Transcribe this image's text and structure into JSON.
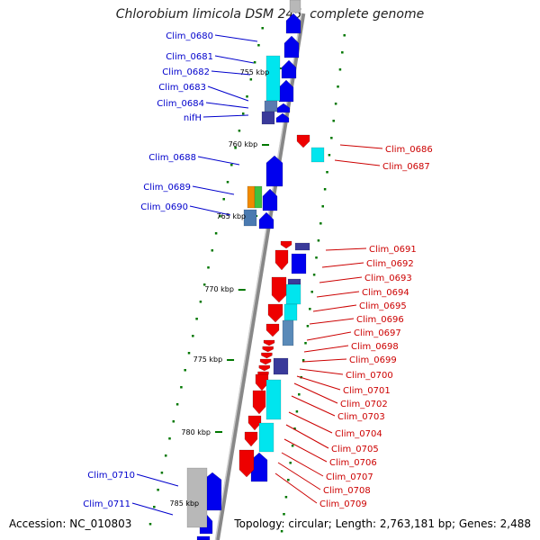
{
  "title": "Chlorobium limicola DSM 245, complete genome",
  "accession": "Accession: NC_010803",
  "topology": "Topology: circular; Length: 2,763,181 bp; Genes: 2,488",
  "colors": {
    "forward_label": "#0000cc",
    "reverse_label": "#cc0000",
    "forward_gene": "#0000ee",
    "reverse_gene": "#ee0000",
    "cyan": "#00e5ee",
    "navy": "#3a3a9a",
    "gray": "#b8b8b8",
    "orange": "#f08a00",
    "green": "#40c040",
    "tick": "#007700",
    "backbone": "#888888"
  },
  "scale_labels": [
    "755 kbp",
    "760 kbp",
    "765 kbp",
    "770 kbp",
    "775 kbp",
    "780 kbp",
    "785 kbp"
  ],
  "left_labels": [
    "Clim_0680",
    "Clim_0681",
    "Clim_0682",
    "Clim_0683",
    "Clim_0684",
    "nifH",
    "Clim_0688",
    "Clim_0689",
    "Clim_0690",
    "Clim_0710",
    "Clim_0711"
  ],
  "right_labels": [
    "Clim_0686",
    "Clim_0687",
    "Clim_0691",
    "Clim_0692",
    "Clim_0693",
    "Clim_0694",
    "Clim_0695",
    "Clim_0696",
    "Clim_0697",
    "Clim_0698",
    "Clim_0699",
    "Clim_0700",
    "Clim_0701",
    "Clim_0702",
    "Clim_0703",
    "Clim_0704",
    "Clim_0705",
    "Clim_0706",
    "Clim_0707",
    "Clim_0708",
    "Clim_0709"
  ]
}
